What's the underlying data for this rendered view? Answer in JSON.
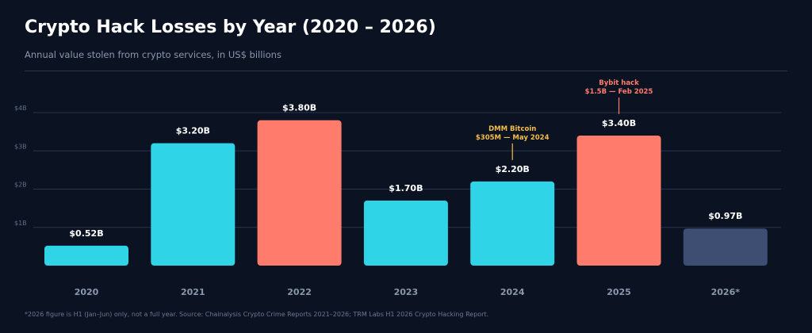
{
  "header": {
    "title": "Crypto Hack Losses by Year (2020 – 2026)",
    "subtitle": "Annual value stolen from crypto services, in US$ billions"
  },
  "footnote": "*2026 figure is H1 (Jan–Jun) only, not a full year. Source: Chainalysis Crypto Crime Reports 2021–2026; TRM Labs H1 2026 Crypto Hacking Report.",
  "colors": {
    "standard": "#2fd4e7",
    "highlight": "#ff7b6b",
    "partial": "#3d4e72",
    "grid": "#26344d",
    "annotation_yellow": "#f5be48",
    "annotation_red": "#ff7b6b",
    "axis_text": "#8a97ad",
    "tick_text": "#5f6e87"
  },
  "chart_data": {
    "type": "bar",
    "title": "Crypto Hack Losses by Year (2020 – 2026)",
    "subtitle": "Annual value stolen from crypto services, in US$ billions",
    "categories": [
      "2020",
      "2021",
      "2022",
      "2023",
      "2024",
      "2025",
      "2026*"
    ],
    "values": [
      0.52,
      3.2,
      3.8,
      1.7,
      2.2,
      3.4,
      0.97
    ],
    "value_labels": [
      "$0.52B",
      "$3.20B",
      "$3.80B",
      "$1.70B",
      "$2.20B",
      "$3.40B",
      "$0.97B"
    ],
    "bar_styles": [
      "standard",
      "standard",
      "highlight",
      "standard",
      "standard",
      "highlight",
      "partial"
    ],
    "yticks": [
      1,
      2,
      3,
      4
    ],
    "ytick_labels": [
      "$1B",
      "$2B",
      "$3B",
      "$4B"
    ],
    "ylim": [
      0,
      4.4
    ],
    "grid": true,
    "legend": "none",
    "annotations": [
      {
        "category": "2024",
        "lines": [
          "DMM Bitcoin",
          "$305M — May 2024"
        ],
        "color": "annotation_yellow"
      },
      {
        "category": "2025",
        "lines": [
          "Bybit hack",
          "$1.5B — Feb 2025"
        ],
        "color": "annotation_red"
      }
    ]
  }
}
